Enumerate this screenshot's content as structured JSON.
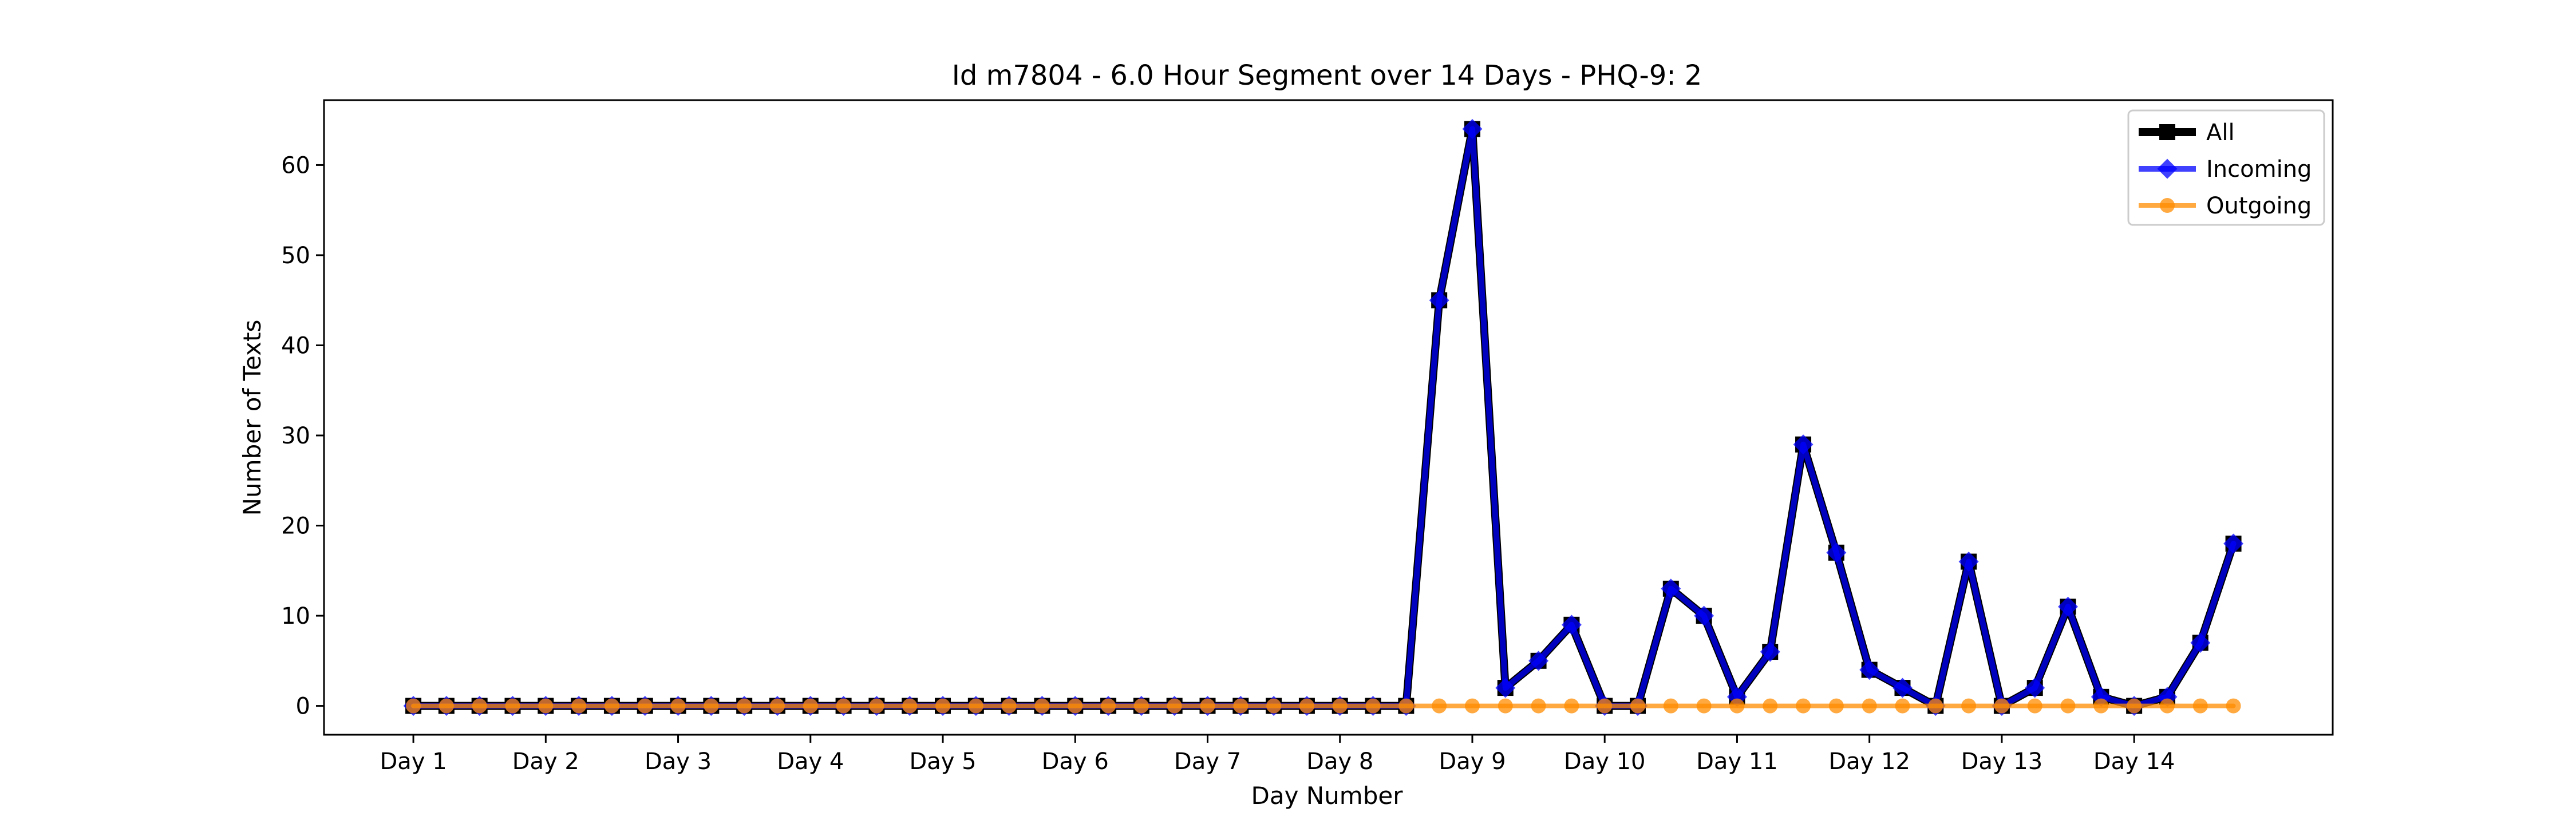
{
  "chart_data": {
    "type": "line",
    "title": "Id m7804 - 6.0 Hour Segment over 14 Days - PHQ-9: 2",
    "xlabel": "Day Number",
    "ylabel": "Number of Texts",
    "xlim": [
      -2.7,
      58.0
    ],
    "ylim": [
      -3.2,
      67.2
    ],
    "y_ticks": [
      0,
      10,
      20,
      30,
      40,
      50,
      60
    ],
    "x_ticks": [
      {
        "x": 0,
        "label": "Day 1"
      },
      {
        "x": 4,
        "label": "Day 2"
      },
      {
        "x": 8,
        "label": "Day 3"
      },
      {
        "x": 12,
        "label": "Day 4"
      },
      {
        "x": 16,
        "label": "Day 5"
      },
      {
        "x": 20,
        "label": "Day 6"
      },
      {
        "x": 24,
        "label": "Day 7"
      },
      {
        "x": 28,
        "label": "Day 8"
      },
      {
        "x": 32,
        "label": "Day 9"
      },
      {
        "x": 36,
        "label": "Day 10"
      },
      {
        "x": 40,
        "label": "Day 11"
      },
      {
        "x": 44,
        "label": "Day 12"
      },
      {
        "x": 48,
        "label": "Day 13"
      },
      {
        "x": 52,
        "label": "Day 14"
      }
    ],
    "grid": false,
    "legend_position": "top-right",
    "series": [
      {
        "name": "All",
        "color": "#000000",
        "marker": "square",
        "start_index": 0,
        "values": [
          0,
          0,
          0,
          0,
          0,
          0,
          0,
          0,
          0,
          0,
          0,
          0,
          0,
          0,
          0,
          0,
          0,
          0,
          0,
          0,
          0,
          0,
          0,
          0,
          0,
          0,
          0,
          0,
          0,
          0,
          0,
          45,
          64,
          2,
          5,
          9,
          0,
          0,
          13,
          10,
          1,
          6,
          29,
          17,
          4,
          2,
          0,
          16,
          0,
          2,
          11,
          1,
          0,
          1,
          7,
          18
        ]
      },
      {
        "name": "Incoming",
        "color": "#0000ff",
        "marker": "diamond",
        "start_index": 0,
        "values": [
          0,
          0,
          0,
          0,
          0,
          0,
          0,
          0,
          0,
          0,
          0,
          0,
          0,
          0,
          0,
          0,
          0,
          0,
          0,
          0,
          0,
          0,
          0,
          0,
          0,
          0,
          0,
          0,
          0,
          0,
          0,
          45,
          64,
          2,
          5,
          9,
          0,
          0,
          13,
          10,
          1,
          6,
          29,
          17,
          4,
          2,
          0,
          16,
          0,
          2,
          11,
          1,
          0,
          1,
          7,
          18
        ]
      },
      {
        "name": "Outgoing",
        "color": "#ff8c00",
        "marker": "circle",
        "start_index": 0,
        "values": [
          0,
          0,
          0,
          0,
          0,
          0,
          0,
          0,
          0,
          0,
          0,
          0,
          0,
          0,
          0,
          0,
          0,
          0,
          0,
          0,
          0,
          0,
          0,
          0,
          0,
          0,
          0,
          0,
          0,
          0,
          0,
          0,
          0,
          0,
          0,
          0,
          0,
          0,
          0,
          0,
          0,
          0,
          0,
          0,
          0,
          0,
          0,
          0,
          0,
          0,
          0,
          0,
          0,
          0,
          0,
          0
        ]
      }
    ]
  }
}
